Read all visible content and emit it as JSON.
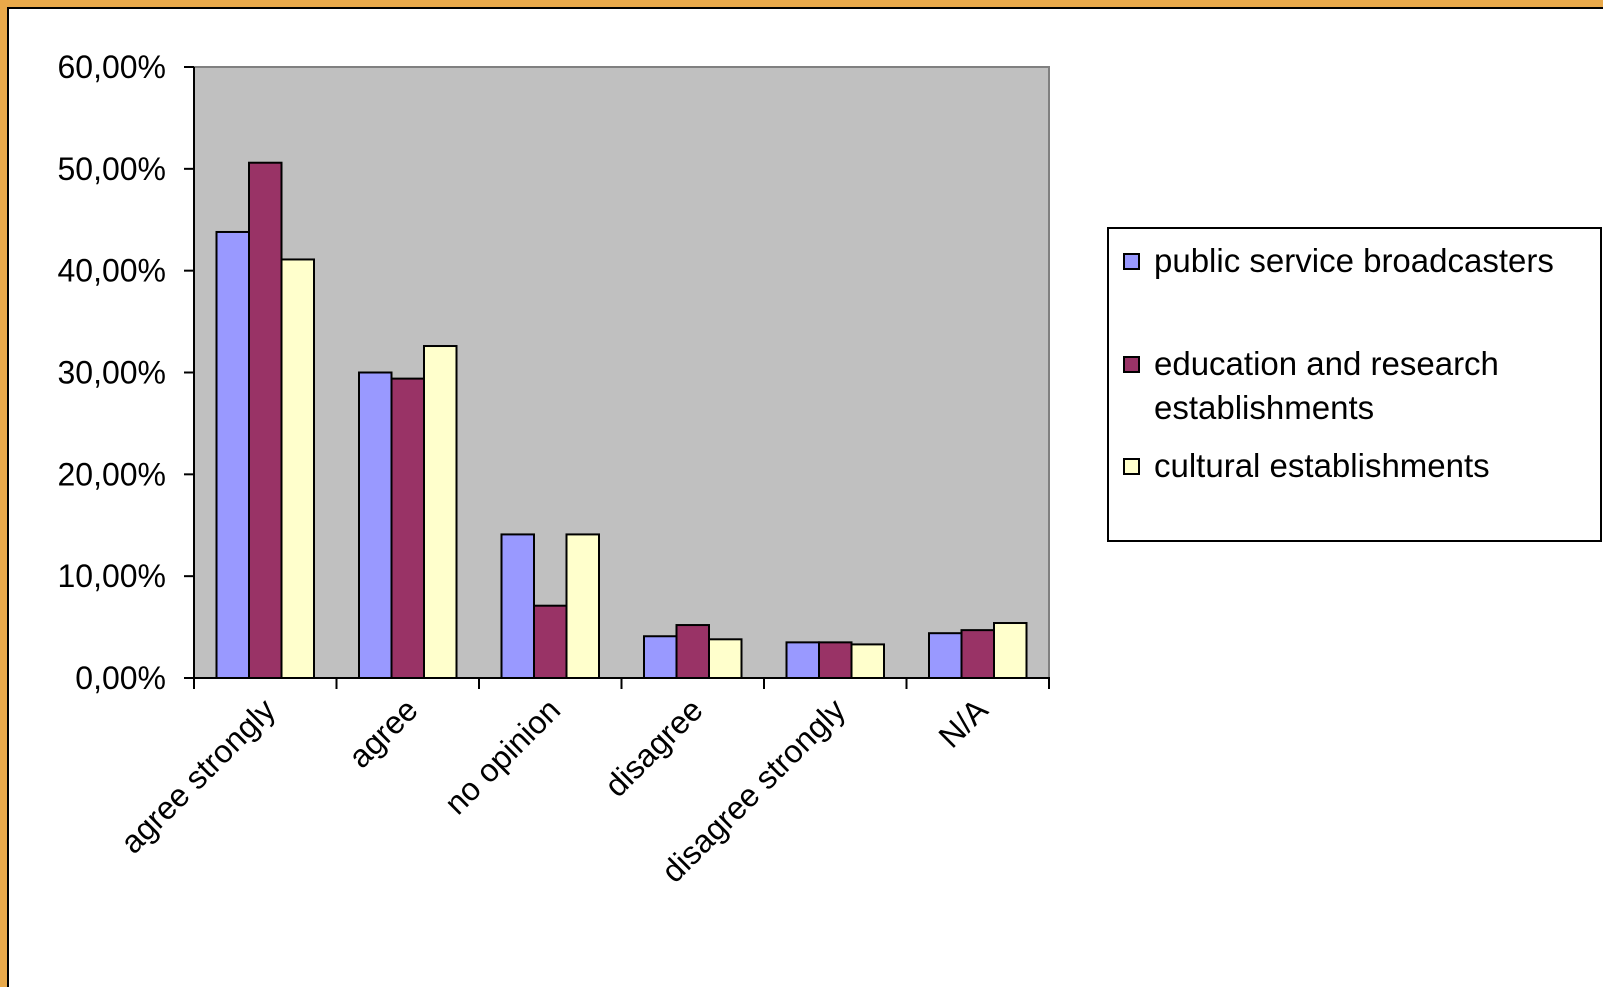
{
  "chart_data": {
    "type": "bar",
    "categories": [
      "agree strongly",
      "agree",
      "no opinion",
      "disagree",
      "disagree strongly",
      "N/A"
    ],
    "series": [
      {
        "name": "public service broadcasters",
        "color": "#9999ff",
        "values": [
          43.8,
          30.0,
          14.1,
          4.1,
          3.5,
          4.4
        ]
      },
      {
        "name": "education and research establishments",
        "color": "#993366",
        "values": [
          50.6,
          29.4,
          7.1,
          5.2,
          3.5,
          4.7
        ]
      },
      {
        "name": "cultural establishments",
        "color": "#ffffcc",
        "values": [
          41.1,
          32.6,
          14.1,
          3.8,
          3.3,
          5.4
        ]
      }
    ],
    "ylim": [
      0,
      60
    ],
    "yticks": [
      0,
      10,
      20,
      30,
      40,
      50,
      60
    ],
    "ytick_labels": [
      "0,00%",
      "10,00%",
      "20,00%",
      "30,00%",
      "40,00%",
      "50,00%",
      "60,00%"
    ],
    "plot_background": "#c0c0c0",
    "grid": false,
    "legend_position": "right"
  }
}
